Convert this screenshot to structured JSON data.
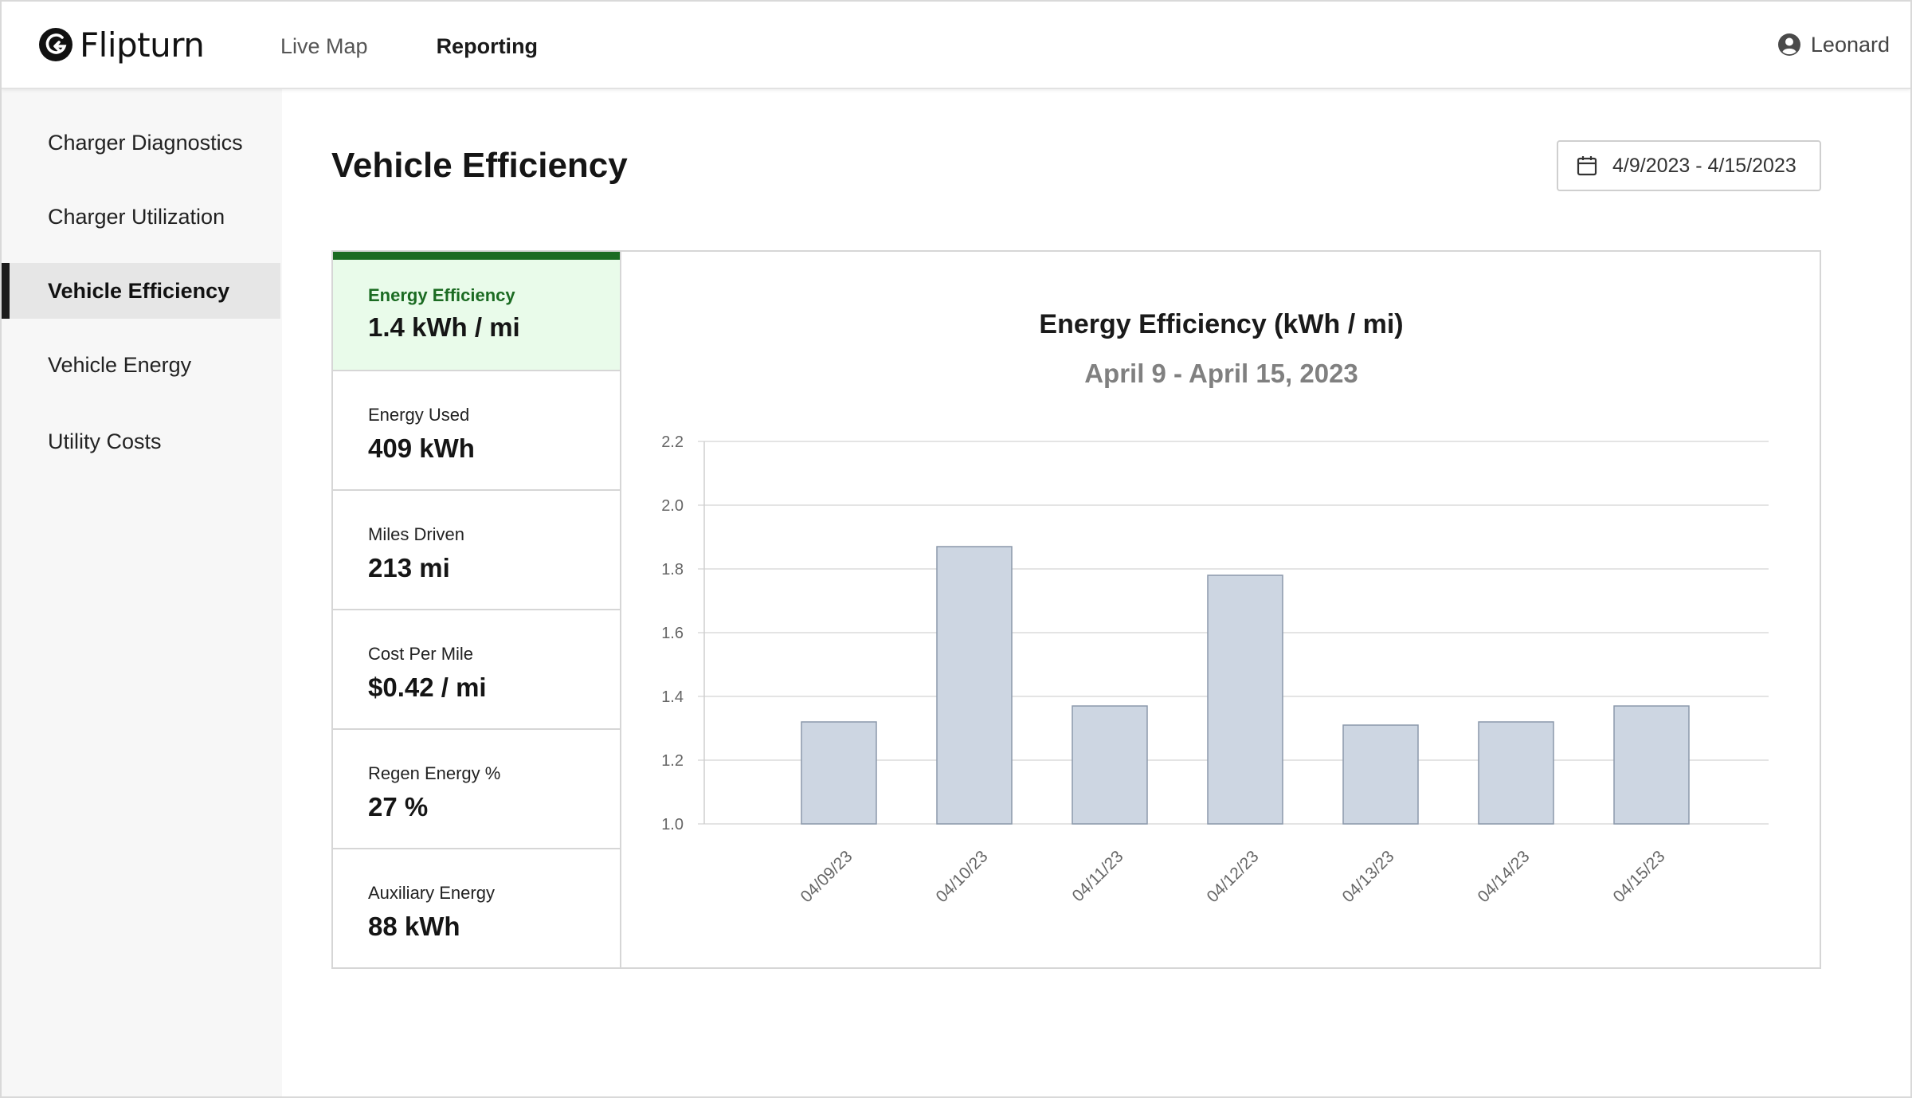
{
  "header": {
    "brand": "Flipturn",
    "nav": [
      {
        "label": "Live Map",
        "active": false
      },
      {
        "label": "Reporting",
        "active": true
      }
    ],
    "user": {
      "name": "Leonard",
      "icon": "user-circle-icon"
    }
  },
  "sidebar": {
    "items": [
      {
        "label": "Charger Diagnostics",
        "active": false
      },
      {
        "label": "Charger Utilization",
        "active": false
      },
      {
        "label": "Vehicle Efficiency",
        "active": true
      },
      {
        "label": "Vehicle Energy",
        "active": false
      },
      {
        "label": "Utility Costs",
        "active": false
      }
    ]
  },
  "main": {
    "title": "Vehicle Efficiency",
    "date_range": {
      "label": "4/9/2023 - 4/15/2023",
      "icon": "calendar-icon"
    },
    "metrics": [
      {
        "label": "Energy Efficiency",
        "value": "1.4 kWh / mi",
        "active": true
      },
      {
        "label": "Energy Used",
        "value": "409 kWh",
        "active": false
      },
      {
        "label": "Miles Driven",
        "value": "213 mi",
        "active": false
      },
      {
        "label": "Cost Per Mile",
        "value": "$0.42 / mi",
        "active": false
      },
      {
        "label": "Regen Energy %",
        "value": "27 %",
        "active": false
      },
      {
        "label": "Auxiliary Energy",
        "value": "88 kWh",
        "active": false
      }
    ]
  },
  "colors": {
    "accent_green": "#1b6b22",
    "active_metric_bg": "#e9fbea",
    "bar_fill": "#cdd6e2",
    "bar_stroke": "#8c99ab"
  },
  "chart_data": {
    "type": "bar",
    "title": "Energy Efficiency (kWh / mi)",
    "subtitle": "April 9 - April 15, 2023",
    "xlabel": "",
    "ylabel": "",
    "categories": [
      "04/09/23",
      "04/10/23",
      "04/11/23",
      "04/12/23",
      "04/13/23",
      "04/14/23",
      "04/15/23"
    ],
    "values": [
      1.32,
      1.87,
      1.37,
      1.78,
      1.31,
      1.32,
      1.37
    ],
    "ylim": [
      1.0,
      2.2
    ],
    "yticks": [
      "1.0",
      "1.2",
      "1.4",
      "1.6",
      "1.8",
      "2.0",
      "2.2"
    ],
    "grid": true,
    "legend": "none"
  }
}
